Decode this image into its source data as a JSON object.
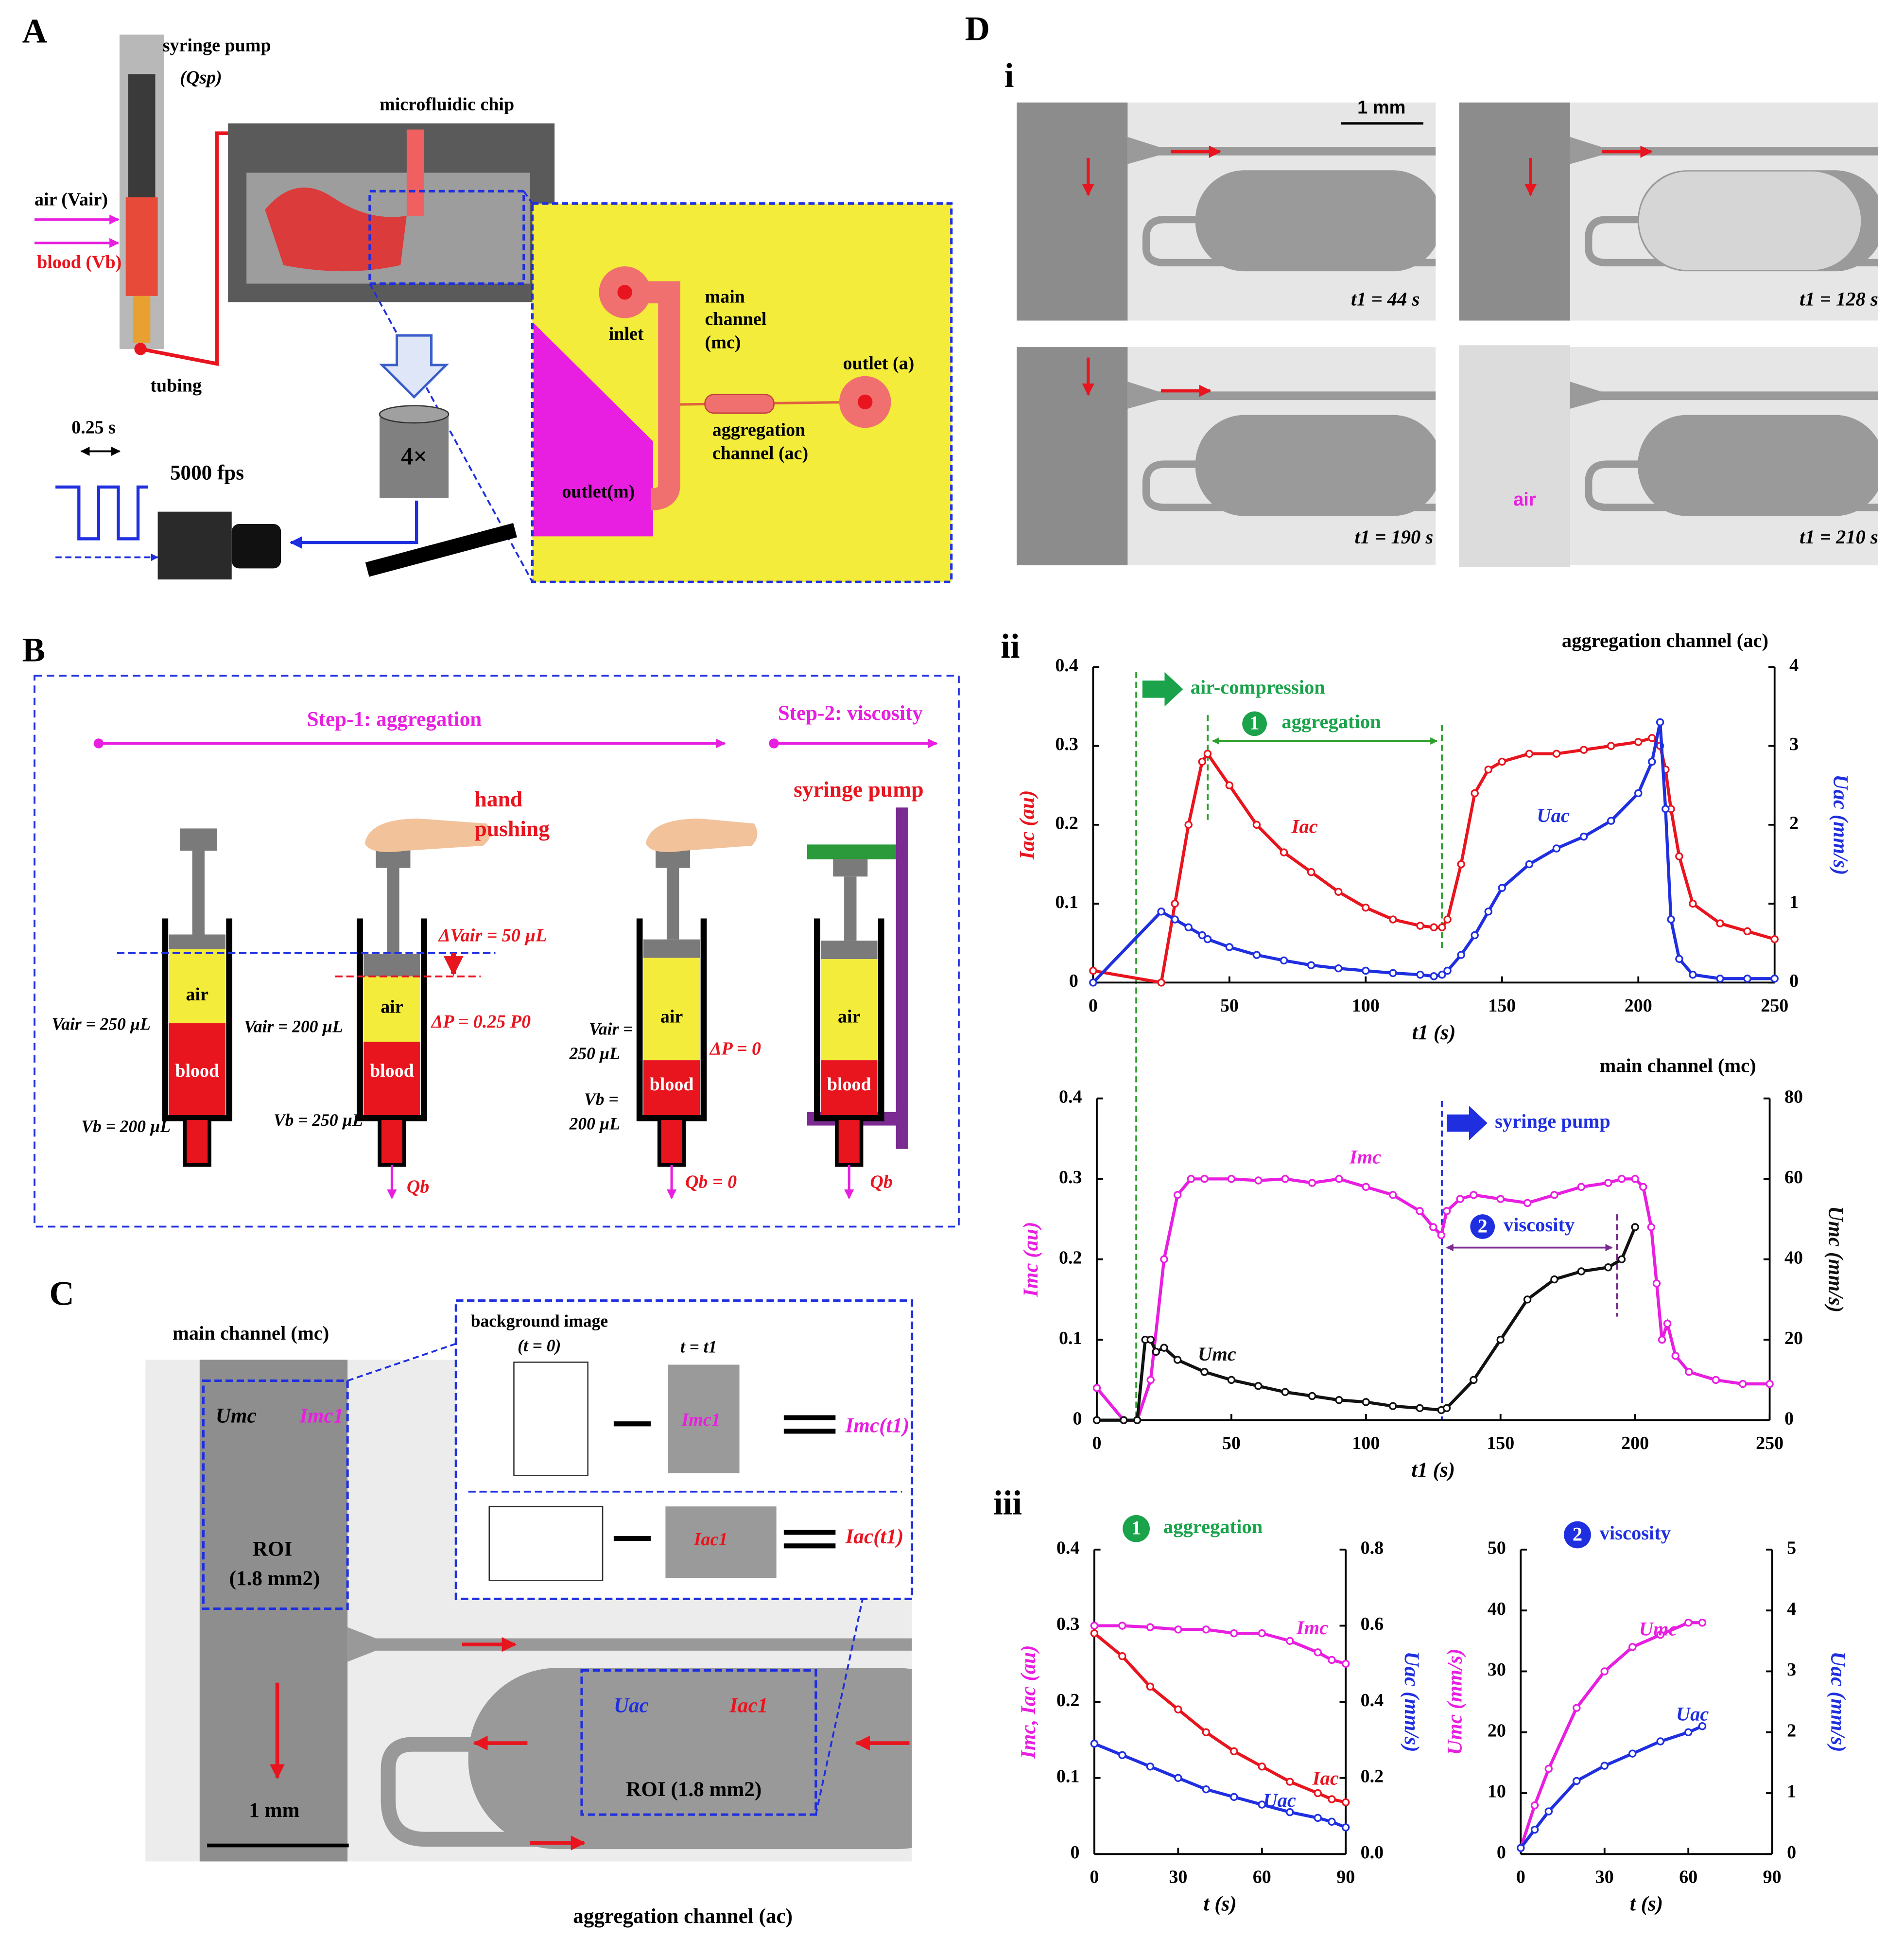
{
  "panels": {
    "A": {
      "label": "A",
      "syringe_pump": "syringe pump",
      "qsp": "(Qsp)",
      "chip": "microfluidic chip",
      "air": "air (Vair)",
      "blood": "blood (Vb)",
      "tubing": "tubing",
      "period": "0.25 s",
      "fps": "5000 fps",
      "objective": "4×",
      "inlet": "inlet",
      "main_channel": [
        "main",
        "channel",
        "(mc)"
      ],
      "outlet_a": "outlet (a)",
      "aggregation_channel": [
        "aggregation",
        "channel (ac)"
      ],
      "outlet_m": "outlet(m)"
    },
    "B": {
      "label": "B",
      "step1": "Step-1: aggregation",
      "step2": "Step-2: viscosity",
      "hand": [
        "hand",
        "pushing"
      ],
      "pump": "syringe pump",
      "dv": "ΔVair = 50 µL",
      "dp1": "ΔP = 0.25 P0",
      "dp2": "ΔP = 0",
      "vair": [
        "Vair = 250 µL",
        "Vair = 200 µL",
        "Vair =",
        "250 µL"
      ],
      "vb": [
        "Vb = 200 µL",
        "Vb = 250 µL",
        "Vb =",
        "200 µL"
      ],
      "q": [
        "Qb",
        "Qb = 0",
        "Qb"
      ],
      "air": "air",
      "blood": "blood"
    },
    "C": {
      "label": "C",
      "main_channel": "main channel (mc)",
      "background": "background image",
      "t0": "(t = 0)",
      "t1": "t = t1",
      "umc": "Umc",
      "imc1": "Imc1",
      "imc_t1": "Imc(t1)",
      "iac1": "Iac1",
      "iac_t1": "Iac(t1)",
      "roi": "ROI",
      "roi_area": "(1.8 mm2)",
      "roi_ac": "ROI (1.8 mm2)",
      "uac": "Uac",
      "scale": "1 mm",
      "aggregation_channel": "aggregation channel (ac)"
    },
    "D": {
      "label": "D",
      "i": "i",
      "ii": "ii",
      "iii": "iii",
      "scale": "1 mm",
      "times": [
        "t1 = 44 s",
        "t1 = 128 s",
        "t1 = 190 s",
        "t1 = 210 s"
      ],
      "air": "air"
    }
  },
  "chart_data": [
    {
      "type": "line",
      "title": "aggregation channel (ac)",
      "xlabel": "t1 (s)",
      "ylabel": "Iac (au)",
      "y2label": "Uac (mm/s)",
      "xlim": [
        0,
        250
      ],
      "xticks": [
        0,
        50,
        100,
        150,
        200,
        250
      ],
      "ylim": [
        0,
        0.4
      ],
      "yticks": [
        0,
        0.1,
        0.2,
        0.3,
        0.4
      ],
      "y2lim": [
        0,
        4
      ],
      "y2ticks": [
        0,
        1,
        2,
        3,
        4
      ],
      "annotations": [
        "air-compression",
        "aggregation",
        "1"
      ],
      "series": [
        {
          "name": "Iac",
          "color": "#e8141e",
          "x": [
            0,
            25,
            30,
            35,
            40,
            42,
            50,
            60,
            70,
            80,
            90,
            100,
            110,
            120,
            125,
            128,
            130,
            135,
            140,
            145,
            150,
            160,
            170,
            180,
            190,
            200,
            205,
            208,
            210,
            212,
            215,
            220,
            230,
            240,
            250
          ],
          "values": [
            0.015,
            0,
            0.1,
            0.2,
            0.28,
            0.29,
            0.25,
            0.2,
            0.165,
            0.14,
            0.115,
            0.095,
            0.08,
            0.072,
            0.07,
            0.07,
            0.08,
            0.15,
            0.24,
            0.27,
            0.28,
            0.29,
            0.29,
            0.295,
            0.3,
            0.305,
            0.31,
            0.3,
            0.27,
            0.22,
            0.16,
            0.1,
            0.075,
            0.065,
            0.055
          ]
        },
        {
          "name": "Uac",
          "color": "#1f2fe0",
          "axis": "y2",
          "x": [
            0,
            25,
            30,
            35,
            40,
            42,
            50,
            60,
            70,
            80,
            90,
            100,
            110,
            120,
            125,
            128,
            130,
            135,
            140,
            145,
            150,
            160,
            170,
            180,
            190,
            200,
            205,
            208,
            210,
            212,
            215,
            220,
            230,
            240,
            250
          ],
          "values": [
            0,
            0.9,
            0.8,
            0.7,
            0.6,
            0.55,
            0.45,
            0.35,
            0.28,
            0.22,
            0.18,
            0.15,
            0.12,
            0.1,
            0.08,
            0.1,
            0.15,
            0.35,
            0.6,
            0.9,
            1.2,
            1.5,
            1.7,
            1.85,
            2.05,
            2.4,
            2.8,
            3.3,
            2.2,
            0.8,
            0.3,
            0.1,
            0.05,
            0.05,
            0.05
          ]
        }
      ]
    },
    {
      "type": "line",
      "title": "main  channel (mc)",
      "xlabel": "t1 (s)",
      "ylabel": "Imc (au)",
      "y2label": "Umc (mm/s)",
      "xlim": [
        0,
        250
      ],
      "xticks": [
        0,
        50,
        100,
        150,
        200,
        250
      ],
      "ylim": [
        0,
        0.4
      ],
      "yticks": [
        0,
        0.1,
        0.2,
        0.3,
        0.4
      ],
      "y2lim": [
        0,
        80
      ],
      "y2ticks": [
        0,
        20,
        40,
        60,
        80
      ],
      "annotations": [
        "syringe pump",
        "viscosity",
        "2"
      ],
      "series": [
        {
          "name": "Imc",
          "color": "#e81ee0",
          "x": [
            0,
            10,
            15,
            20,
            25,
            30,
            35,
            40,
            50,
            60,
            70,
            80,
            90,
            100,
            110,
            120,
            125,
            128,
            130,
            135,
            140,
            150,
            160,
            170,
            180,
            190,
            195,
            200,
            203,
            206,
            208,
            210,
            212,
            215,
            220,
            230,
            240,
            250
          ],
          "values": [
            0.04,
            0,
            0,
            0.05,
            0.2,
            0.28,
            0.3,
            0.3,
            0.3,
            0.298,
            0.3,
            0.295,
            0.3,
            0.29,
            0.28,
            0.26,
            0.24,
            0.23,
            0.26,
            0.275,
            0.28,
            0.275,
            0.27,
            0.28,
            0.29,
            0.295,
            0.3,
            0.3,
            0.29,
            0.24,
            0.17,
            0.1,
            0.12,
            0.08,
            0.06,
            0.05,
            0.045,
            0.045
          ]
        },
        {
          "name": "Umc",
          "color": "#111111",
          "axis": "y2",
          "x": [
            0,
            10,
            15,
            18,
            20,
            22,
            25,
            30,
            40,
            50,
            60,
            70,
            80,
            90,
            100,
            110,
            120,
            128,
            130,
            140,
            150,
            160,
            170,
            180,
            190,
            195,
            200
          ],
          "values": [
            0,
            0,
            0,
            20,
            20,
            17,
            18,
            15,
            12,
            10,
            8.5,
            7,
            6,
            5,
            4.5,
            3.5,
            3,
            2.5,
            3,
            10,
            20,
            30,
            35,
            37,
            38,
            40,
            48
          ]
        }
      ]
    },
    {
      "type": "line",
      "xlabel": "t (s)",
      "ylabel": "Imc, Iac (au)",
      "y2label": "Uac (mm/s)",
      "xlim": [
        0,
        90
      ],
      "xticks": [
        0,
        30,
        60,
        90
      ],
      "ylim": [
        0,
        0.4
      ],
      "yticks": [
        0,
        0.1,
        0.2,
        0.3,
        0.4
      ],
      "y2lim": [
        0,
        0.8
      ],
      "y2ticks": [
        {
          "value": 0,
          "label": "0.0"
        },
        0.2,
        0.4,
        0.6,
        0.8
      ],
      "annotations": [
        "aggregation",
        "1"
      ],
      "series": [
        {
          "name": "Imc",
          "color": "#e81ee0",
          "x": [
            0,
            10,
            20,
            30,
            40,
            50,
            60,
            70,
            80,
            85,
            90
          ],
          "values": [
            0.3,
            0.3,
            0.298,
            0.295,
            0.295,
            0.29,
            0.29,
            0.28,
            0.265,
            0.255,
            0.25
          ]
        },
        {
          "name": "Iac",
          "color": "#e8141e",
          "x": [
            0,
            10,
            20,
            30,
            40,
            50,
            60,
            70,
            80,
            85,
            90
          ],
          "values": [
            0.29,
            0.26,
            0.22,
            0.19,
            0.16,
            0.135,
            0.115,
            0.095,
            0.08,
            0.072,
            0.068
          ]
        },
        {
          "name": "Uac",
          "color": "#1f2fe0",
          "axis": "y2",
          "x": [
            0,
            10,
            20,
            30,
            40,
            50,
            60,
            70,
            80,
            85,
            90
          ],
          "values": [
            0.29,
            0.26,
            0.23,
            0.2,
            0.17,
            0.15,
            0.13,
            0.11,
            0.095,
            0.085,
            0.07
          ]
        }
      ]
    },
    {
      "type": "line",
      "xlabel": "t (s)",
      "ylabel": "Umc (mm/s)",
      "y2label": "Uac (mm/s)",
      "xlim": [
        0,
        90
      ],
      "xticks": [
        0,
        30,
        60,
        90
      ],
      "ylim": [
        0,
        50
      ],
      "yticks": [
        0,
        10,
        20,
        30,
        40,
        50
      ],
      "y2lim": [
        0,
        5
      ],
      "y2ticks": [
        0,
        1,
        2,
        3,
        4,
        5
      ],
      "annotations": [
        "viscosity",
        "2"
      ],
      "series": [
        {
          "name": "Umc",
          "color": "#e81ee0",
          "x": [
            0,
            5,
            10,
            20,
            30,
            40,
            50,
            60,
            65
          ],
          "values": [
            1,
            8,
            14,
            24,
            30,
            34,
            36,
            38,
            38
          ]
        },
        {
          "name": "Uac",
          "color": "#1f2fe0",
          "axis": "y2",
          "x": [
            0,
            5,
            10,
            20,
            30,
            40,
            50,
            60,
            65
          ],
          "values": [
            0.1,
            0.4,
            0.7,
            1.2,
            1.45,
            1.65,
            1.85,
            2.0,
            2.1
          ]
        }
      ]
    }
  ]
}
